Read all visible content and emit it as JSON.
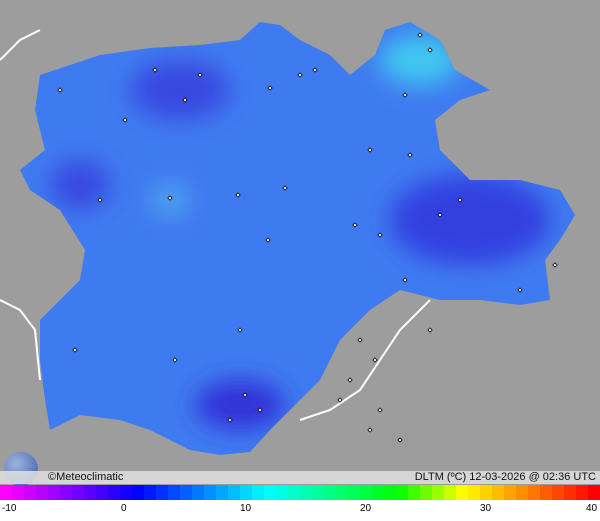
{
  "credit": "©Meteoclimatic",
  "caption": "DLTM (ºC) 12-03-2026 @ 02:36 UTC",
  "legend": {
    "min": -10,
    "max": 40,
    "ticks": [
      "-10",
      "0",
      "10",
      "20",
      "30",
      "40"
    ],
    "colors": [
      "#ff00ff",
      "#8000ff",
      "#0000ff",
      "#0080ff",
      "#00ffff",
      "#00ff80",
      "#00ff00",
      "#ffff00",
      "#ff8000",
      "#ff0000"
    ]
  },
  "colors": {
    "background": "#9a9a9a",
    "region": "#3f7bf0",
    "cold": "#3040e0",
    "border": "#ffffff"
  }
}
